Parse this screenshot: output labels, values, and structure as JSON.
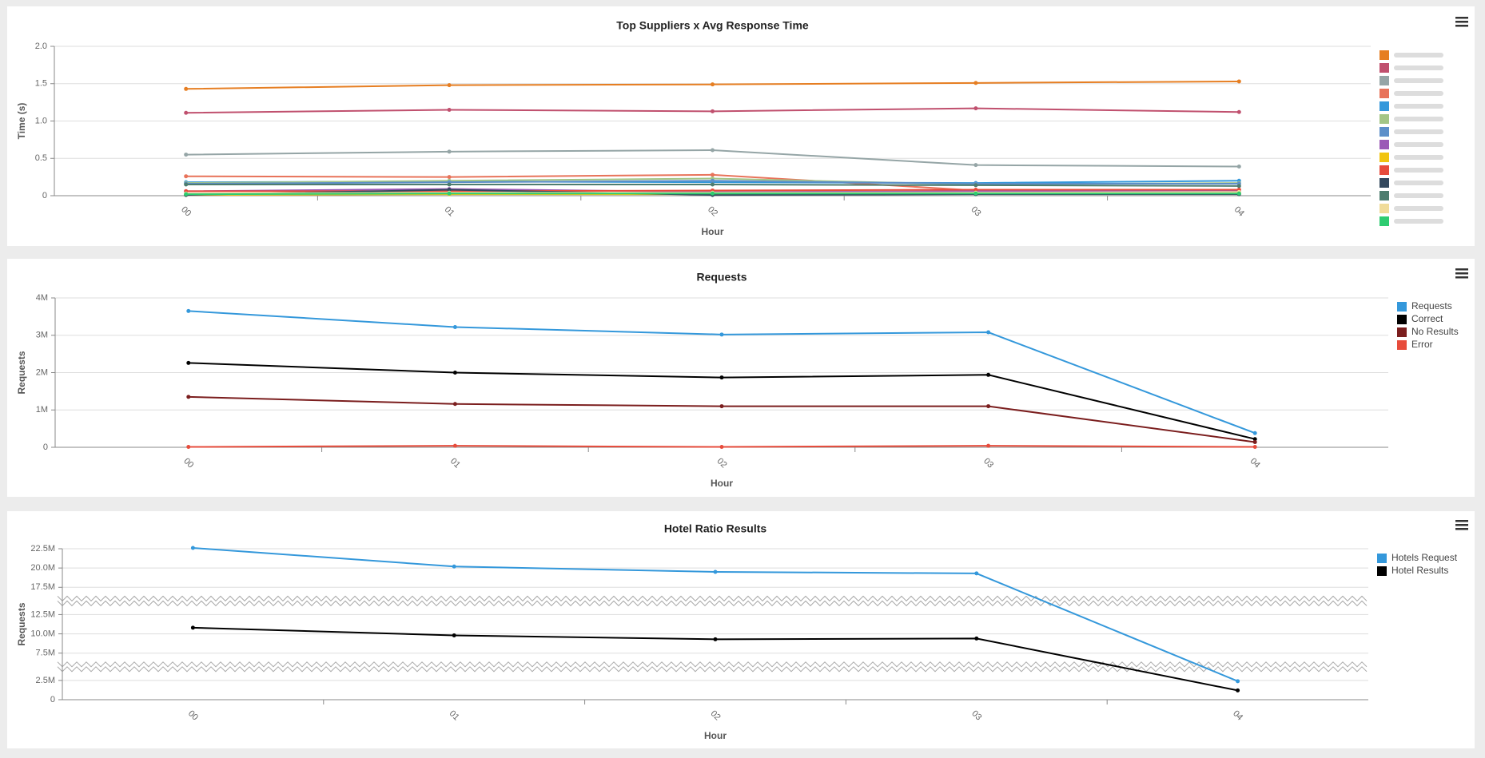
{
  "chart_data": [
    {
      "type": "line",
      "title": "Top Suppliers x Avg Response Time",
      "x_label": "Hour",
      "y_label": "Time (s)",
      "categories": [
        "00",
        "01",
        "02",
        "03",
        "04"
      ],
      "ylim": [
        0,
        2
      ],
      "yticks": [
        0,
        0.5,
        {
          "value": 1,
          "label": "1.0"
        },
        1.5,
        {
          "value": 2,
          "label": "2.0"
        }
      ],
      "grid": true,
      "legend": "right",
      "series": [
        {
          "color": "#e67e22",
          "values": [
            1.43,
            1.48,
            1.49,
            1.51,
            1.53
          ]
        },
        {
          "color": "#c0506e",
          "values": [
            1.11,
            1.15,
            1.13,
            1.17,
            1.12
          ]
        },
        {
          "color": "#95a5a6",
          "values": [
            0.55,
            0.59,
            0.61,
            0.41,
            0.39
          ]
        },
        {
          "color": "#e8735a",
          "values": [
            0.26,
            0.25,
            0.28,
            0.07,
            0.08
          ]
        },
        {
          "color": "#3498db",
          "values": [
            0.18,
            0.19,
            0.18,
            0.17,
            0.2
          ]
        },
        {
          "color": "#a3c586",
          "values": [
            0.17,
            0.2,
            0.23,
            0.15,
            0.17
          ]
        },
        {
          "color": "#5d8fc9",
          "values": [
            0.16,
            0.18,
            0.2,
            0.16,
            0.16
          ]
        },
        {
          "color": "#9b59b6",
          "values": [
            0.06,
            0.09,
            0.05,
            0.06,
            0.06
          ]
        },
        {
          "color": "#f1c40f",
          "values": [
            0.01,
            0.02,
            0.02,
            0.03,
            0.03
          ]
        },
        {
          "color": "#e74c3c",
          "values": [
            0.06,
            0.06,
            0.07,
            0.08,
            0.08
          ]
        },
        {
          "color": "#34495e",
          "values": [
            0.01,
            0.08,
            0.01,
            0.02,
            0.02
          ]
        },
        {
          "color": "#4e7d6f",
          "values": [
            0.15,
            0.15,
            0.15,
            0.14,
            0.13
          ]
        },
        {
          "color": "#f0dc9a",
          "values": [
            0.03,
            0.04,
            0.04,
            0.04,
            0.05
          ]
        },
        {
          "color": "#2ecc71",
          "values": [
            0.02,
            0.03,
            0.03,
            0.03,
            0.03
          ]
        }
      ]
    },
    {
      "type": "line",
      "title": "Requests",
      "x_label": "Hour",
      "y_label": "Requests",
      "categories": [
        "00",
        "01",
        "02",
        "03",
        "04"
      ],
      "ylim": [
        0,
        4000000
      ],
      "yticks": [
        0,
        {
          "value": 1000000,
          "label": "1M"
        },
        {
          "value": 2000000,
          "label": "2M"
        },
        {
          "value": 3000000,
          "label": "3M"
        },
        {
          "value": 4000000,
          "label": "4M"
        }
      ],
      "grid": true,
      "legend": "right",
      "series": [
        {
          "name": "Requests",
          "color": "#3498db",
          "values": [
            3650000,
            3220000,
            3020000,
            3080000,
            380000
          ]
        },
        {
          "name": "Correct",
          "color": "#000000",
          "values": [
            2260000,
            2000000,
            1870000,
            1940000,
            220000
          ]
        },
        {
          "name": "No Results",
          "color": "#7b1e1e",
          "values": [
            1350000,
            1160000,
            1100000,
            1100000,
            140000
          ]
        },
        {
          "name": "Error",
          "color": "#e74c3c",
          "values": [
            10000,
            40000,
            10000,
            40000,
            10000
          ]
        }
      ]
    },
    {
      "type": "line",
      "title": "Hotel Ratio Results",
      "x_label": "Hour",
      "y_label": "Requests",
      "categories": [
        "00",
        "01",
        "02",
        "03",
        "04"
      ],
      "ylim": [
        0,
        22500000
      ],
      "axis_breaks": [
        [
          3750000,
          6250000
        ],
        [
          13750000,
          16250000
        ]
      ],
      "yticks": [
        0,
        {
          "value": 2500000,
          "label": "2.5M"
        },
        {
          "value": 7500000,
          "label": "7.5M"
        },
        {
          "value": 10000000,
          "label": "10.0M"
        },
        {
          "value": 12500000,
          "label": "12.5M"
        },
        {
          "value": 17500000,
          "label": "17.5M"
        },
        {
          "value": 20000000,
          "label": "20.0M"
        },
        {
          "value": 22500000,
          "label": "22.5M"
        }
      ],
      "grid": true,
      "legend": "right",
      "series": [
        {
          "name": "Hotels Request",
          "color": "#3498db",
          "values": [
            22600000,
            20200000,
            19500000,
            19300000,
            2400000
          ]
        },
        {
          "name": "Hotel Results",
          "color": "#000000",
          "values": [
            10800000,
            9800000,
            9300000,
            9400000,
            1200000
          ]
        }
      ]
    }
  ]
}
